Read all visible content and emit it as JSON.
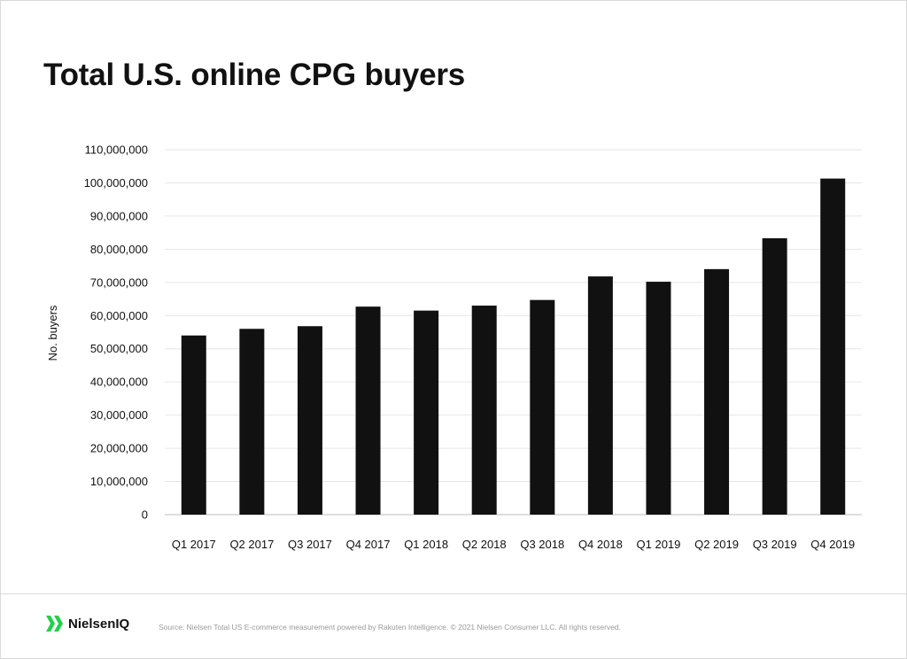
{
  "brand": {
    "name": "NielsenIQ",
    "accent": "#22d14a"
  },
  "source_note": "Source: Nielsen Total US E-commerce measurement powered by Rakuten Intelligence. © 2021 Nielsen Consumer LLC. All rights reserved.",
  "chart_data": {
    "type": "bar",
    "title": "Total U.S. online CPG buyers",
    "ylabel": "No. buyers",
    "xlabel": "",
    "ylim": [
      0,
      110000000
    ],
    "yticks": [
      0,
      10000000,
      20000000,
      30000000,
      40000000,
      50000000,
      60000000,
      70000000,
      80000000,
      90000000,
      100000000,
      110000000
    ],
    "ytick_labels": [
      "0",
      "10,000,000",
      "20,000,000",
      "30,000,000",
      "40,000,000",
      "50,000,000",
      "60,000,000",
      "70,000,000",
      "80,000,000",
      "90,000,000",
      "100,000,000",
      "110,000,000"
    ],
    "grid": true,
    "bar_color": "#111111",
    "categories": [
      "Q1 2017",
      "Q2 2017",
      "Q3 2017",
      "Q4 2017",
      "Q1 2018",
      "Q2 2018",
      "Q3 2018",
      "Q4 2018",
      "Q1 2019",
      "Q2 2019",
      "Q3 2019",
      "Q4 2019"
    ],
    "values": [
      54000000,
      56000000,
      56800000,
      62700000,
      61500000,
      63000000,
      64700000,
      71800000,
      70200000,
      74000000,
      83300000,
      101300000
    ]
  }
}
